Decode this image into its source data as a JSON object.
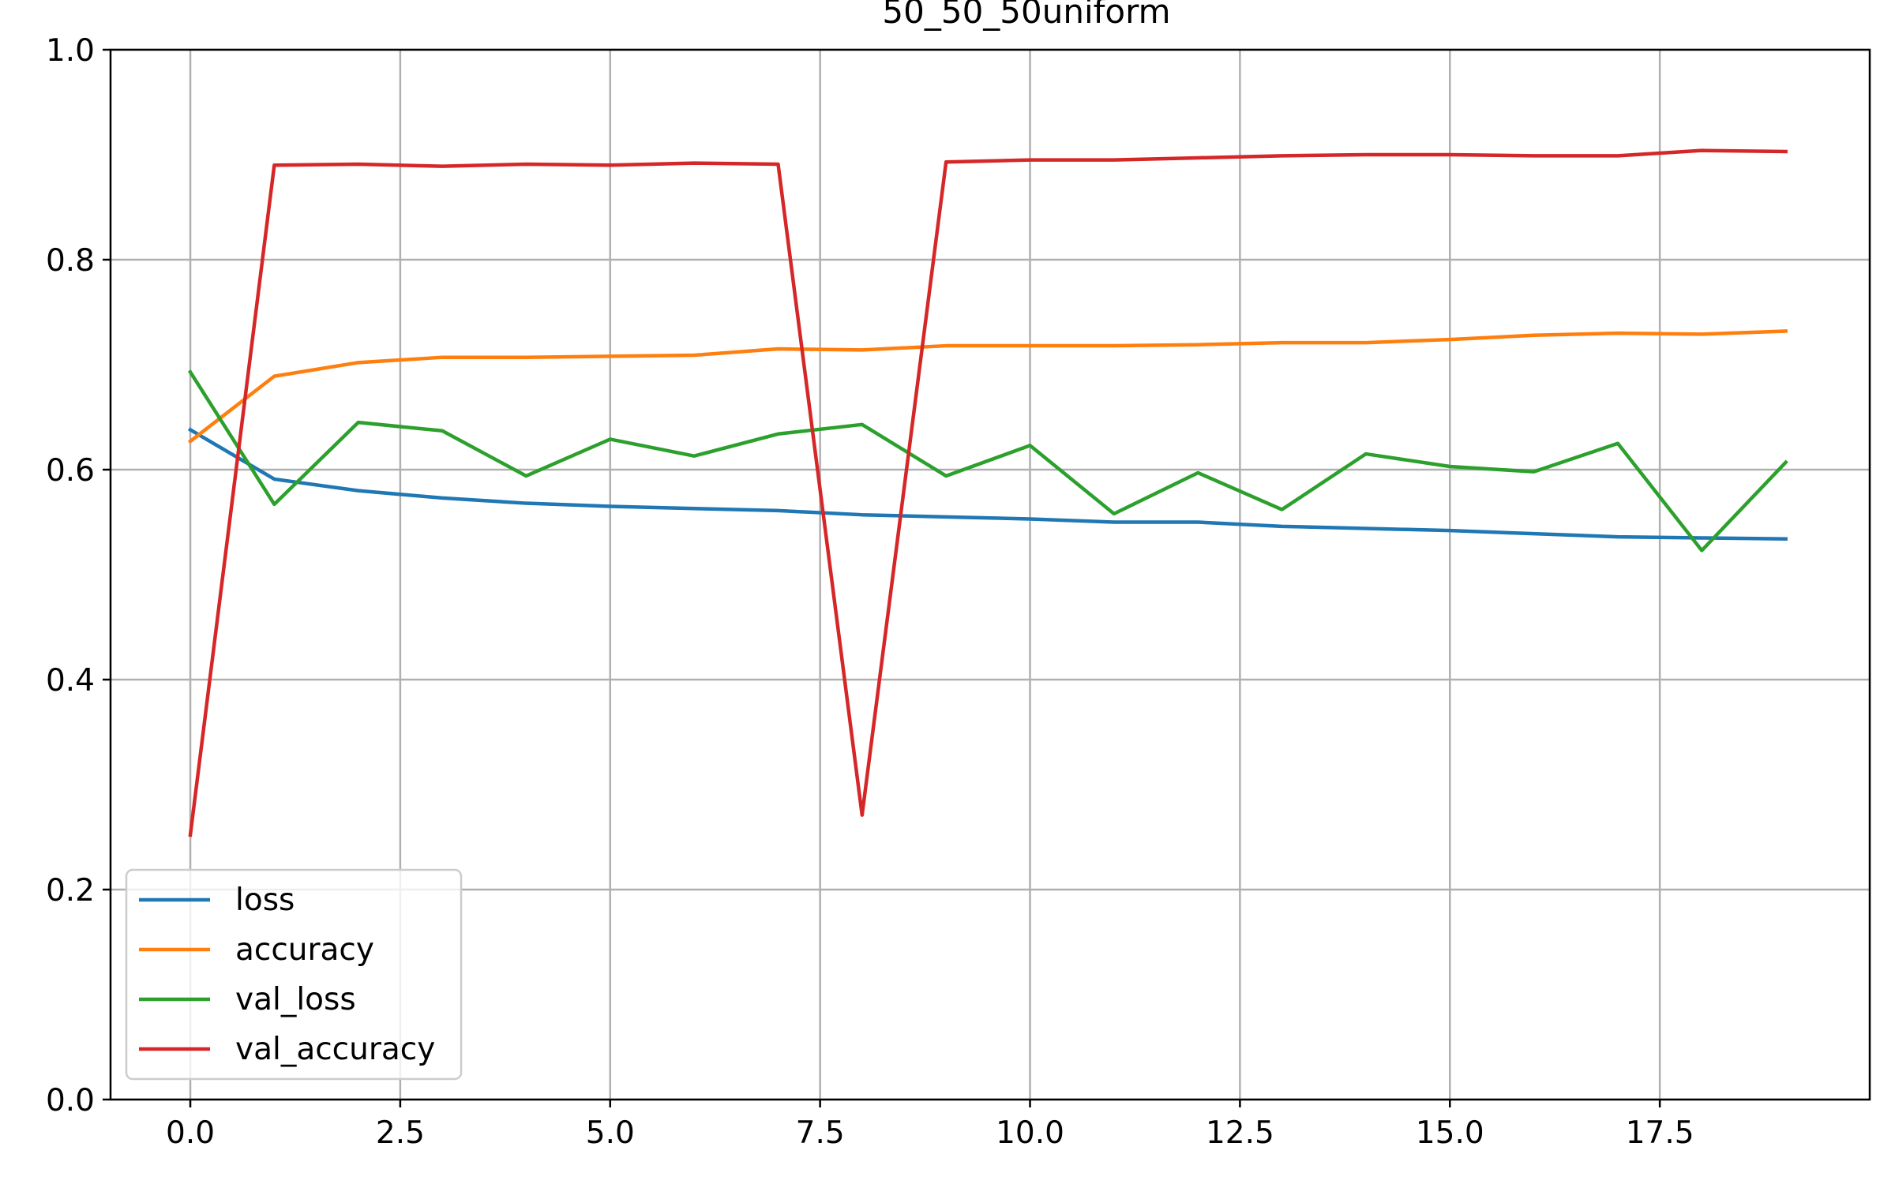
{
  "chart_data": {
    "type": "line",
    "title": "50_50_50uniform",
    "xlabel": "",
    "ylabel": "",
    "xlim": [
      -0.95,
      20.0
    ],
    "ylim": [
      0.0,
      1.0
    ],
    "grid": true,
    "legend_position": "lower-left",
    "x_ticks": [
      0.0,
      2.5,
      5.0,
      7.5,
      10.0,
      12.5,
      15.0,
      17.5
    ],
    "x_tick_labels": [
      "0.0",
      "2.5",
      "5.0",
      "7.5",
      "10.0",
      "12.5",
      "15.0",
      "17.5"
    ],
    "y_ticks": [
      0.0,
      0.2,
      0.4,
      0.6,
      0.8,
      1.0
    ],
    "y_tick_labels": [
      "0.0",
      "0.2",
      "0.4",
      "0.6",
      "0.8",
      "1.0"
    ],
    "x": [
      0,
      1,
      2,
      3,
      4,
      5,
      6,
      7,
      8,
      9,
      10,
      11,
      12,
      13,
      14,
      15,
      16,
      17,
      18,
      19
    ],
    "series": [
      {
        "name": "loss",
        "color": "#1f77b4",
        "values": [
          0.638,
          0.591,
          0.58,
          0.573,
          0.568,
          0.565,
          0.563,
          0.561,
          0.557,
          0.555,
          0.553,
          0.55,
          0.55,
          0.546,
          0.544,
          0.542,
          0.539,
          0.536,
          0.535,
          0.534
        ]
      },
      {
        "name": "accuracy",
        "color": "#ff7f0e",
        "values": [
          0.627,
          0.689,
          0.702,
          0.707,
          0.707,
          0.708,
          0.709,
          0.715,
          0.714,
          0.718,
          0.718,
          0.718,
          0.719,
          0.721,
          0.721,
          0.724,
          0.728,
          0.73,
          0.729,
          0.732
        ]
      },
      {
        "name": "val_loss",
        "color": "#2ca02c",
        "values": [
          0.693,
          0.567,
          0.645,
          0.637,
          0.594,
          0.629,
          0.613,
          0.634,
          0.643,
          0.594,
          0.623,
          0.558,
          0.597,
          0.562,
          0.615,
          0.603,
          0.598,
          0.625,
          0.523,
          0.607
        ]
      },
      {
        "name": "val_accuracy",
        "color": "#d62728",
        "values": [
          0.252,
          0.89,
          0.891,
          0.889,
          0.891,
          0.89,
          0.892,
          0.891,
          0.271,
          0.893,
          0.895,
          0.895,
          0.897,
          0.899,
          0.9,
          0.9,
          0.899,
          0.899,
          0.904,
          0.903
        ]
      }
    ]
  }
}
